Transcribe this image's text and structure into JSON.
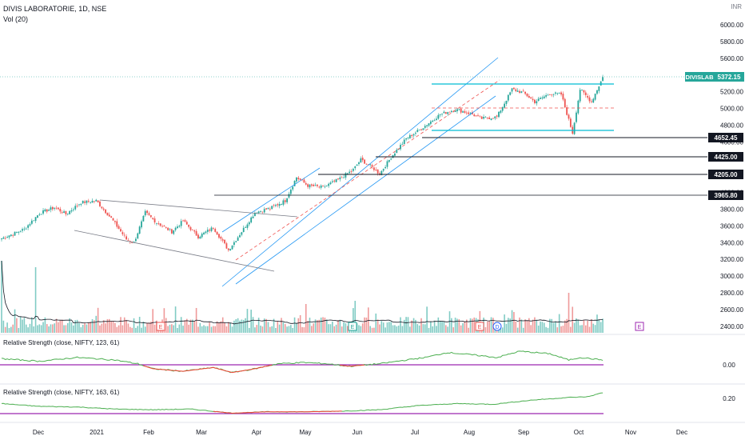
{
  "header": {
    "symbol_line": "DIVIS LABORATORIE, 1D, NSE",
    "volume_label": "Vol (20)",
    "currency": "INR"
  },
  "colors": {
    "up": "#26a69a",
    "down": "#ef5350",
    "channel": "#2196f3",
    "trend": "#787b86",
    "cyan_level": "#00bcd4",
    "dashed": "#ef5350",
    "rs_line": "#4caf50",
    "rs_below": "#f44336",
    "rs_zero": "#9c27b0",
    "axis_text": "#131722",
    "price_tag": "#26a69a"
  },
  "chart_data": [
    {
      "type": "candlestick",
      "title": "DIVIS LABORATORIE, 1D, NSE",
      "ylim": [
        2350,
        6300
      ],
      "y_ticks": [
        2400,
        2600,
        2800,
        3000,
        3200,
        3400,
        3600,
        3800,
        4000,
        4200,
        4400,
        4600,
        4800,
        5000,
        5200,
        5400,
        5600,
        5800,
        6000
      ],
      "x_ticks": [
        "Dec",
        "2021",
        "Feb",
        "Mar",
        "Apr",
        "May",
        "Jun",
        "Jul",
        "Aug",
        "Sep",
        "Oct",
        "Nov",
        "Dec"
      ],
      "price_anchors": [
        [
          0,
          3450
        ],
        [
          12,
          3560
        ],
        [
          20,
          3750
        ],
        [
          28,
          3820
        ],
        [
          34,
          3740
        ],
        [
          42,
          3880
        ],
        [
          50,
          3900
        ],
        [
          58,
          3690
        ],
        [
          66,
          3440
        ],
        [
          70,
          3400
        ],
        [
          76,
          3760
        ],
        [
          82,
          3640
        ],
        [
          90,
          3530
        ],
        [
          96,
          3660
        ],
        [
          104,
          3470
        ],
        [
          112,
          3580
        ],
        [
          120,
          3310
        ],
        [
          126,
          3500
        ],
        [
          134,
          3760
        ],
        [
          142,
          3810
        ],
        [
          150,
          3900
        ],
        [
          156,
          4180
        ],
        [
          162,
          4080
        ],
        [
          170,
          4060
        ],
        [
          178,
          4150
        ],
        [
          186,
          4270
        ],
        [
          190,
          4390
        ],
        [
          196,
          4300
        ],
        [
          200,
          4220
        ],
        [
          206,
          4420
        ],
        [
          214,
          4640
        ],
        [
          222,
          4760
        ],
        [
          232,
          4930
        ],
        [
          240,
          4990
        ],
        [
          248,
          4940
        ],
        [
          254,
          4880
        ],
        [
          262,
          4900
        ],
        [
          270,
          5230
        ],
        [
          276,
          5190
        ],
        [
          282,
          5080
        ],
        [
          290,
          5180
        ],
        [
          296,
          5170
        ],
        [
          302,
          4710
        ],
        [
          306,
          5230
        ],
        [
          312,
          5080
        ],
        [
          318,
          5372.15
        ]
      ],
      "last_price": "5372.15",
      "symbol_tag": "DIVISLAB",
      "horizontal_levels": [
        {
          "label": "4652.45",
          "value": 4652.45
        },
        {
          "label": "4425.00",
          "value": 4425.0
        },
        {
          "label": "4205.00",
          "value": 4205.0
        },
        {
          "label": "3965.80",
          "value": 3965.8
        }
      ],
      "resistance_level": 5290,
      "support_level": 4720,
      "mid_dashed_level": 5010,
      "earnings_markers": [
        "E",
        "E",
        "E",
        "E"
      ],
      "dividend_markers": [
        "D"
      ]
    },
    {
      "type": "line",
      "title": "Relative Strength (close, NIFTY, 123, 61)",
      "tick_label": "0.00",
      "ylim": [
        -0.12,
        0.2
      ],
      "zero": 0,
      "values_anchors": [
        [
          0,
          0.05
        ],
        [
          20,
          0.03
        ],
        [
          40,
          0.06
        ],
        [
          60,
          0.04
        ],
        [
          72,
          0.01
        ],
        [
          80,
          -0.03
        ],
        [
          96,
          -0.05
        ],
        [
          112,
          -0.02
        ],
        [
          122,
          -0.06
        ],
        [
          134,
          -0.03
        ],
        [
          146,
          0.01
        ],
        [
          160,
          0.02
        ],
        [
          172,
          0.01
        ],
        [
          184,
          -0.01
        ],
        [
          200,
          0.01
        ],
        [
          214,
          0.04
        ],
        [
          224,
          0.06
        ],
        [
          236,
          0.1
        ],
        [
          250,
          0.08
        ],
        [
          262,
          0.06
        ],
        [
          274,
          0.11
        ],
        [
          290,
          0.09
        ],
        [
          300,
          0.04
        ],
        [
          306,
          0.06
        ],
        [
          312,
          0.05
        ],
        [
          318,
          0.04
        ]
      ]
    },
    {
      "type": "line",
      "title": "Relative Strength (close, NIFTY, 163, 61)",
      "tick_label": "0.20",
      "ylim": [
        -0.18,
        0.3
      ],
      "zero": -0.05,
      "values_anchors": [
        [
          0,
          0.06
        ],
        [
          20,
          0.02
        ],
        [
          40,
          0.01
        ],
        [
          60,
          -0.02
        ],
        [
          80,
          -0.03
        ],
        [
          100,
          -0.02
        ],
        [
          122,
          -0.08
        ],
        [
          140,
          -0.06
        ],
        [
          160,
          -0.06
        ],
        [
          180,
          -0.05
        ],
        [
          200,
          -0.03
        ],
        [
          220,
          0.03
        ],
        [
          240,
          0.06
        ],
        [
          260,
          0.05
        ],
        [
          280,
          0.11
        ],
        [
          300,
          0.15
        ],
        [
          310,
          0.16
        ],
        [
          318,
          0.22
        ]
      ]
    }
  ]
}
